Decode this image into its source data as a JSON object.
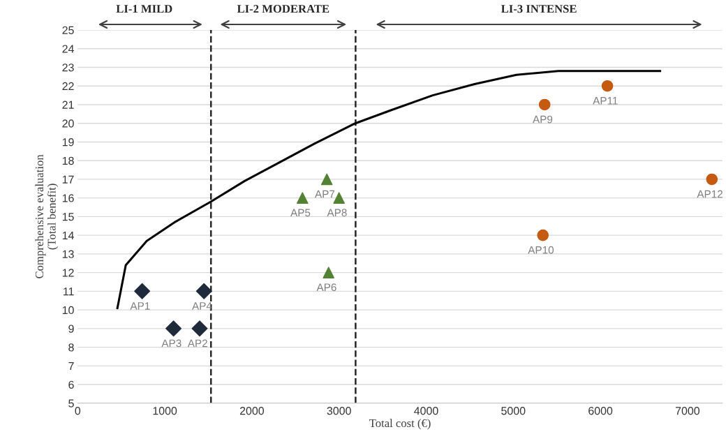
{
  "chart_data": {
    "type": "scatter",
    "xlabel": "Total cost (€)",
    "ylabel": "Comprehensive evaluation\n(Total benefit)",
    "xlim": [
      0,
      7400
    ],
    "xticks": [
      0,
      1000,
      2000,
      3000,
      4000,
      5000,
      6000,
      7000
    ],
    "ylim": [
      5,
      25
    ],
    "yticks": [
      5,
      6,
      7,
      8,
      9,
      10,
      11,
      12,
      13,
      14,
      15,
      16,
      17,
      18,
      19,
      20,
      21,
      22,
      23,
      24,
      25
    ],
    "grid": "y",
    "legend": false,
    "series": [
      {
        "type": "line",
        "color": "#000000",
        "marker": "none",
        "line_style": "solid",
        "x": [
          456,
          552,
          793,
          1113,
          1529,
          1913,
          2314,
          2714,
          3187,
          3595,
          4075,
          4556,
          5036,
          5516,
          5997,
          6685
        ],
        "values": [
          10.1,
          12.4,
          13.7,
          14.7,
          15.8,
          16.9,
          17.9,
          18.9,
          20.0,
          20.7,
          21.5,
          22.1,
          22.6,
          22.8,
          22.8,
          22.8
        ]
      },
      {
        "color": "#1f2a3a",
        "marker": "diamond",
        "x": [
          740,
          1400,
          1100,
          1450
        ],
        "values": [
          11,
          9,
          9,
          11
        ],
        "value_labels": [
          "AP1",
          "AP2",
          "AP3",
          "AP4"
        ]
      },
      {
        "color": "#548235",
        "marker": "triangle",
        "x": [
          2580,
          2880,
          2860,
          3000
        ],
        "values": [
          16,
          12,
          17,
          16
        ],
        "value_labels": [
          "AP5",
          "AP6",
          "AP7",
          "AP8"
        ]
      },
      {
        "color": "#c55a11",
        "marker": "circle",
        "x": [
          5360,
          5340,
          6080,
          7280
        ],
        "values": [
          21,
          14,
          22,
          17
        ],
        "value_labels": [
          "AP9",
          "AP10",
          "AP11",
          "AP12"
        ]
      }
    ],
    "ref_lines": [
      {
        "axis": "x",
        "value": 1530,
        "line_style": "dashed",
        "color": "#262626"
      },
      {
        "axis": "x",
        "value": 3190,
        "line_style": "dashed",
        "color": "#262626"
      }
    ],
    "annotations": [
      "LI-1 MILD",
      "LI-2 MODERATE",
      "LI-3 INTENSE"
    ]
  }
}
